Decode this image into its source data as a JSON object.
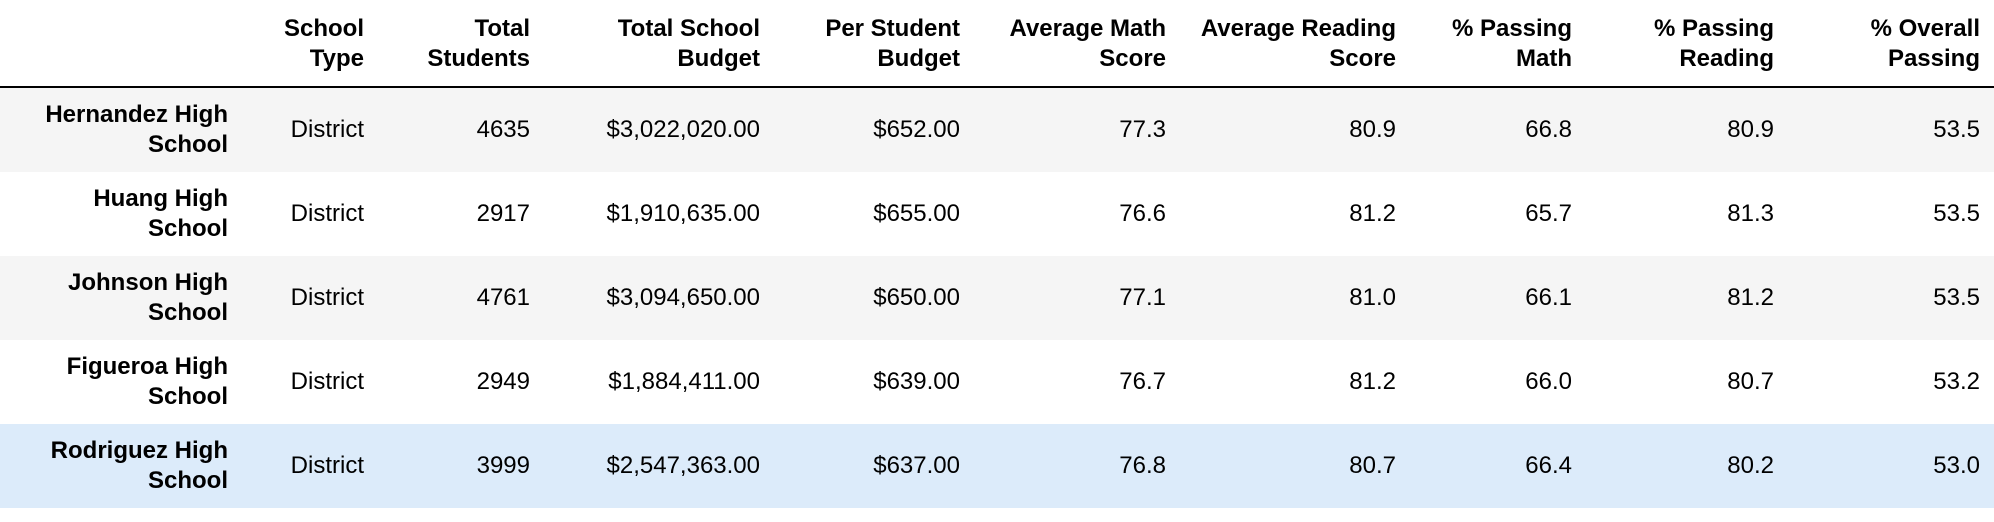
{
  "table": {
    "columns": [
      "",
      "School\nType",
      "Total\nStudents",
      "Total School\nBudget",
      "Per Student\nBudget",
      "Average Math\nScore",
      "Average Reading\nScore",
      "% Passing\nMath",
      "% Passing\nReading",
      "% Overall\nPassing"
    ],
    "rows": [
      {
        "school": "Hernandez High School",
        "cells": [
          "District",
          "4635",
          "$3,022,020.00",
          "$652.00",
          "77.3",
          "80.9",
          "66.8",
          "80.9",
          "53.5"
        ]
      },
      {
        "school": "Huang High School",
        "cells": [
          "District",
          "2917",
          "$1,910,635.00",
          "$655.00",
          "76.6",
          "81.2",
          "65.7",
          "81.3",
          "53.5"
        ]
      },
      {
        "school": "Johnson High School",
        "cells": [
          "District",
          "4761",
          "$3,094,650.00",
          "$650.00",
          "77.1",
          "81.0",
          "66.1",
          "81.2",
          "53.5"
        ]
      },
      {
        "school": "Figueroa High School",
        "cells": [
          "District",
          "2949",
          "$1,884,411.00",
          "$639.00",
          "76.7",
          "81.2",
          "66.0",
          "80.7",
          "53.2"
        ]
      },
      {
        "school": "Rodriguez High School",
        "cells": [
          "District",
          "3999",
          "$2,547,363.00",
          "$637.00",
          "76.8",
          "80.7",
          "66.4",
          "80.2",
          "53.0"
        ]
      }
    ],
    "highlight_color": "#dcebfa",
    "stripe_color": "#f5f5f5"
  }
}
